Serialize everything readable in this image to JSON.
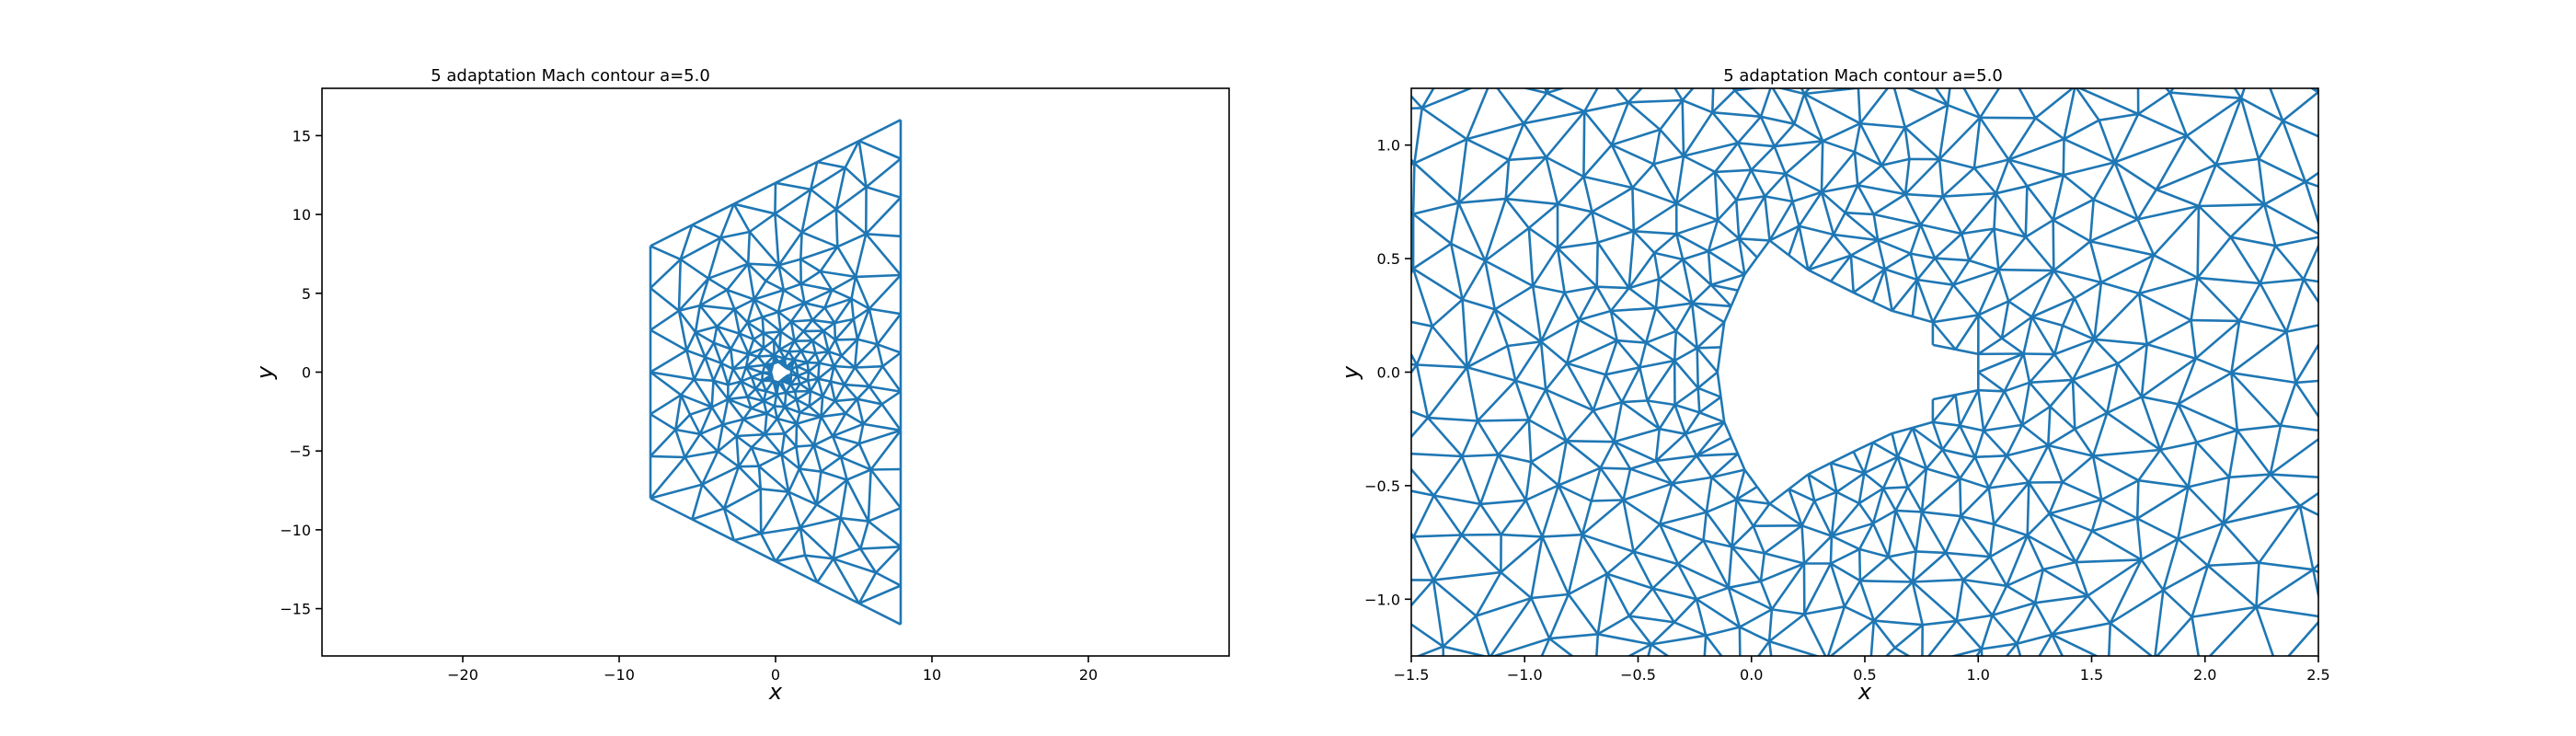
{
  "chart_data": [
    {
      "type": "mesh",
      "title": "5 adaptation Mach contour a=5.0",
      "xlabel": "x",
      "ylabel": "y",
      "xlim": [
        -29,
        29
      ],
      "ylim": [
        -18,
        18
      ],
      "xticks": [
        -20,
        -10,
        0,
        10,
        20
      ],
      "xtick_labels": [
        "−20",
        "−10",
        "0",
        "10",
        "20"
      ],
      "yticks": [
        -15,
        -10,
        -5,
        0,
        5,
        10,
        15
      ],
      "ytick_labels": [
        "−15",
        "−10",
        "−5",
        "0",
        "5",
        "10",
        "15"
      ],
      "grid": false,
      "line_color": "#1f77b4",
      "domain_boundary": [
        [
          -8,
          8
        ],
        [
          8,
          16
        ],
        [
          8,
          -16
        ],
        [
          -8,
          -8
        ]
      ],
      "body_boundary": [
        [
          -0.3,
          0
        ],
        [
          -0.15,
          0.55
        ],
        [
          0.2,
          0.65
        ],
        [
          0.5,
          0.4
        ],
        [
          0.8,
          0.2
        ],
        [
          1.0,
          0.15
        ],
        [
          1.0,
          -0.15
        ],
        [
          0.8,
          -0.2
        ],
        [
          0.5,
          -0.4
        ],
        [
          0.2,
          -0.65
        ],
        [
          -0.15,
          -0.55
        ]
      ]
    },
    {
      "type": "mesh",
      "title": "5 adaptation Mach contour a=5.0",
      "xlabel": "x",
      "ylabel": "y",
      "xlim": [
        -1.5,
        2.5
      ],
      "ylim": [
        -1.25,
        1.25
      ],
      "xticks": [
        -1.5,
        -1.0,
        -0.5,
        0.0,
        0.5,
        1.0,
        1.5,
        2.0,
        2.5
      ],
      "xtick_labels": [
        "−1.5",
        "−1.0",
        "−0.5",
        "0.0",
        "0.5",
        "1.0",
        "1.5",
        "2.0",
        "2.5"
      ],
      "yticks": [
        -1.0,
        -0.5,
        0.0,
        0.5,
        1.0
      ],
      "ytick_labels": [
        "−1.0",
        "−0.5",
        "0.0",
        "0.5",
        "1.0"
      ],
      "grid": false,
      "line_color": "#1f77b4",
      "body_boundary": [
        [
          -0.15,
          0.0
        ],
        [
          -0.12,
          0.22
        ],
        [
          -0.03,
          0.43
        ],
        [
          0.08,
          0.58
        ],
        [
          0.25,
          0.45
        ],
        [
          0.45,
          0.35
        ],
        [
          0.62,
          0.27
        ],
        [
          0.8,
          0.22
        ],
        [
          0.8,
          0.12
        ],
        [
          1.0,
          0.08
        ],
        [
          1.0,
          -0.08
        ],
        [
          0.8,
          -0.12
        ],
        [
          0.8,
          -0.22
        ],
        [
          0.62,
          -0.27
        ],
        [
          0.45,
          -0.35
        ],
        [
          0.25,
          -0.45
        ],
        [
          0.08,
          -0.58
        ],
        [
          -0.03,
          -0.43
        ],
        [
          -0.12,
          -0.22
        ]
      ]
    }
  ]
}
